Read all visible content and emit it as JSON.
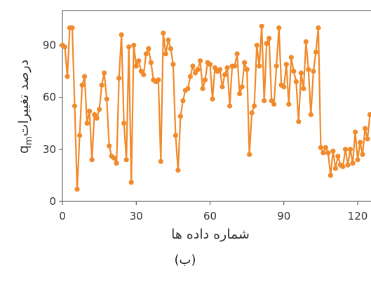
{
  "caption": "(ب)",
  "chart_data": {
    "type": "line",
    "xlabel": "شماره داده ها",
    "ylabel": "درصد تغییرات",
    "ylabel_var": "q",
    "ylabel_sub": "m",
    "xlim": [
      0,
      125
    ],
    "ylim": [
      0,
      110
    ],
    "xticks": [
      0,
      30,
      60,
      90,
      120
    ],
    "yticks": [
      0,
      30,
      60,
      90
    ],
    "grid": false,
    "color": "#f08a2b",
    "series": [
      {
        "x": [
          0,
          1,
          2,
          3,
          4,
          5,
          6,
          7,
          8,
          9,
          10,
          11,
          12,
          13,
          14,
          15,
          16,
          17,
          18,
          19,
          20,
          21,
          22,
          23,
          24,
          25,
          26,
          27,
          28,
          29,
          30,
          31,
          32,
          33,
          34,
          35,
          36,
          37,
          38,
          39,
          40,
          41,
          42,
          43,
          44,
          45,
          46,
          47,
          48,
          49,
          50,
          51,
          52,
          53,
          54,
          55,
          56,
          57,
          58,
          59,
          60,
          61,
          62,
          63,
          64,
          65,
          66,
          67,
          68,
          69,
          70,
          71,
          72,
          73,
          74,
          75,
          76,
          77,
          78,
          79,
          80,
          81,
          82,
          83,
          84,
          85,
          86,
          87,
          88,
          89,
          90,
          91,
          92,
          93,
          94,
          95,
          96,
          97,
          98,
          99,
          100,
          101,
          102,
          103,
          104,
          105,
          106,
          107,
          108,
          109,
          110,
          111,
          112,
          113,
          114,
          115,
          116,
          117,
          118,
          119,
          120,
          121,
          122,
          123,
          124,
          125
        ],
        "y": [
          90,
          89,
          72,
          100,
          100,
          55,
          7,
          38,
          67,
          72,
          45,
          52,
          24,
          50,
          48,
          53,
          67,
          74,
          59,
          32,
          26,
          25,
          22,
          71,
          96,
          45,
          24,
          89,
          11,
          90,
          78,
          81,
          75,
          73,
          85,
          88,
          80,
          70,
          69,
          70,
          23,
          97,
          85,
          93,
          88,
          79,
          38,
          18,
          49,
          58,
          64,
          65,
          72,
          78,
          74,
          76,
          81,
          65,
          70,
          80,
          79,
          59,
          77,
          75,
          76,
          66,
          73,
          77,
          55,
          78,
          78,
          85,
          62,
          66,
          80,
          76,
          27,
          51,
          55,
          90,
          78,
          101,
          58,
          91,
          94,
          58,
          56,
          78,
          100,
          67,
          66,
          79,
          56,
          83,
          75,
          69,
          46,
          74,
          65,
          92,
          76,
          50,
          75,
          86,
          100,
          31,
          28,
          31,
          28,
          15,
          29,
          19,
          26,
          21,
          20,
          30,
          21,
          30,
          22,
          40,
          24,
          34,
          27,
          42,
          36,
          50
        ]
      }
    ]
  }
}
